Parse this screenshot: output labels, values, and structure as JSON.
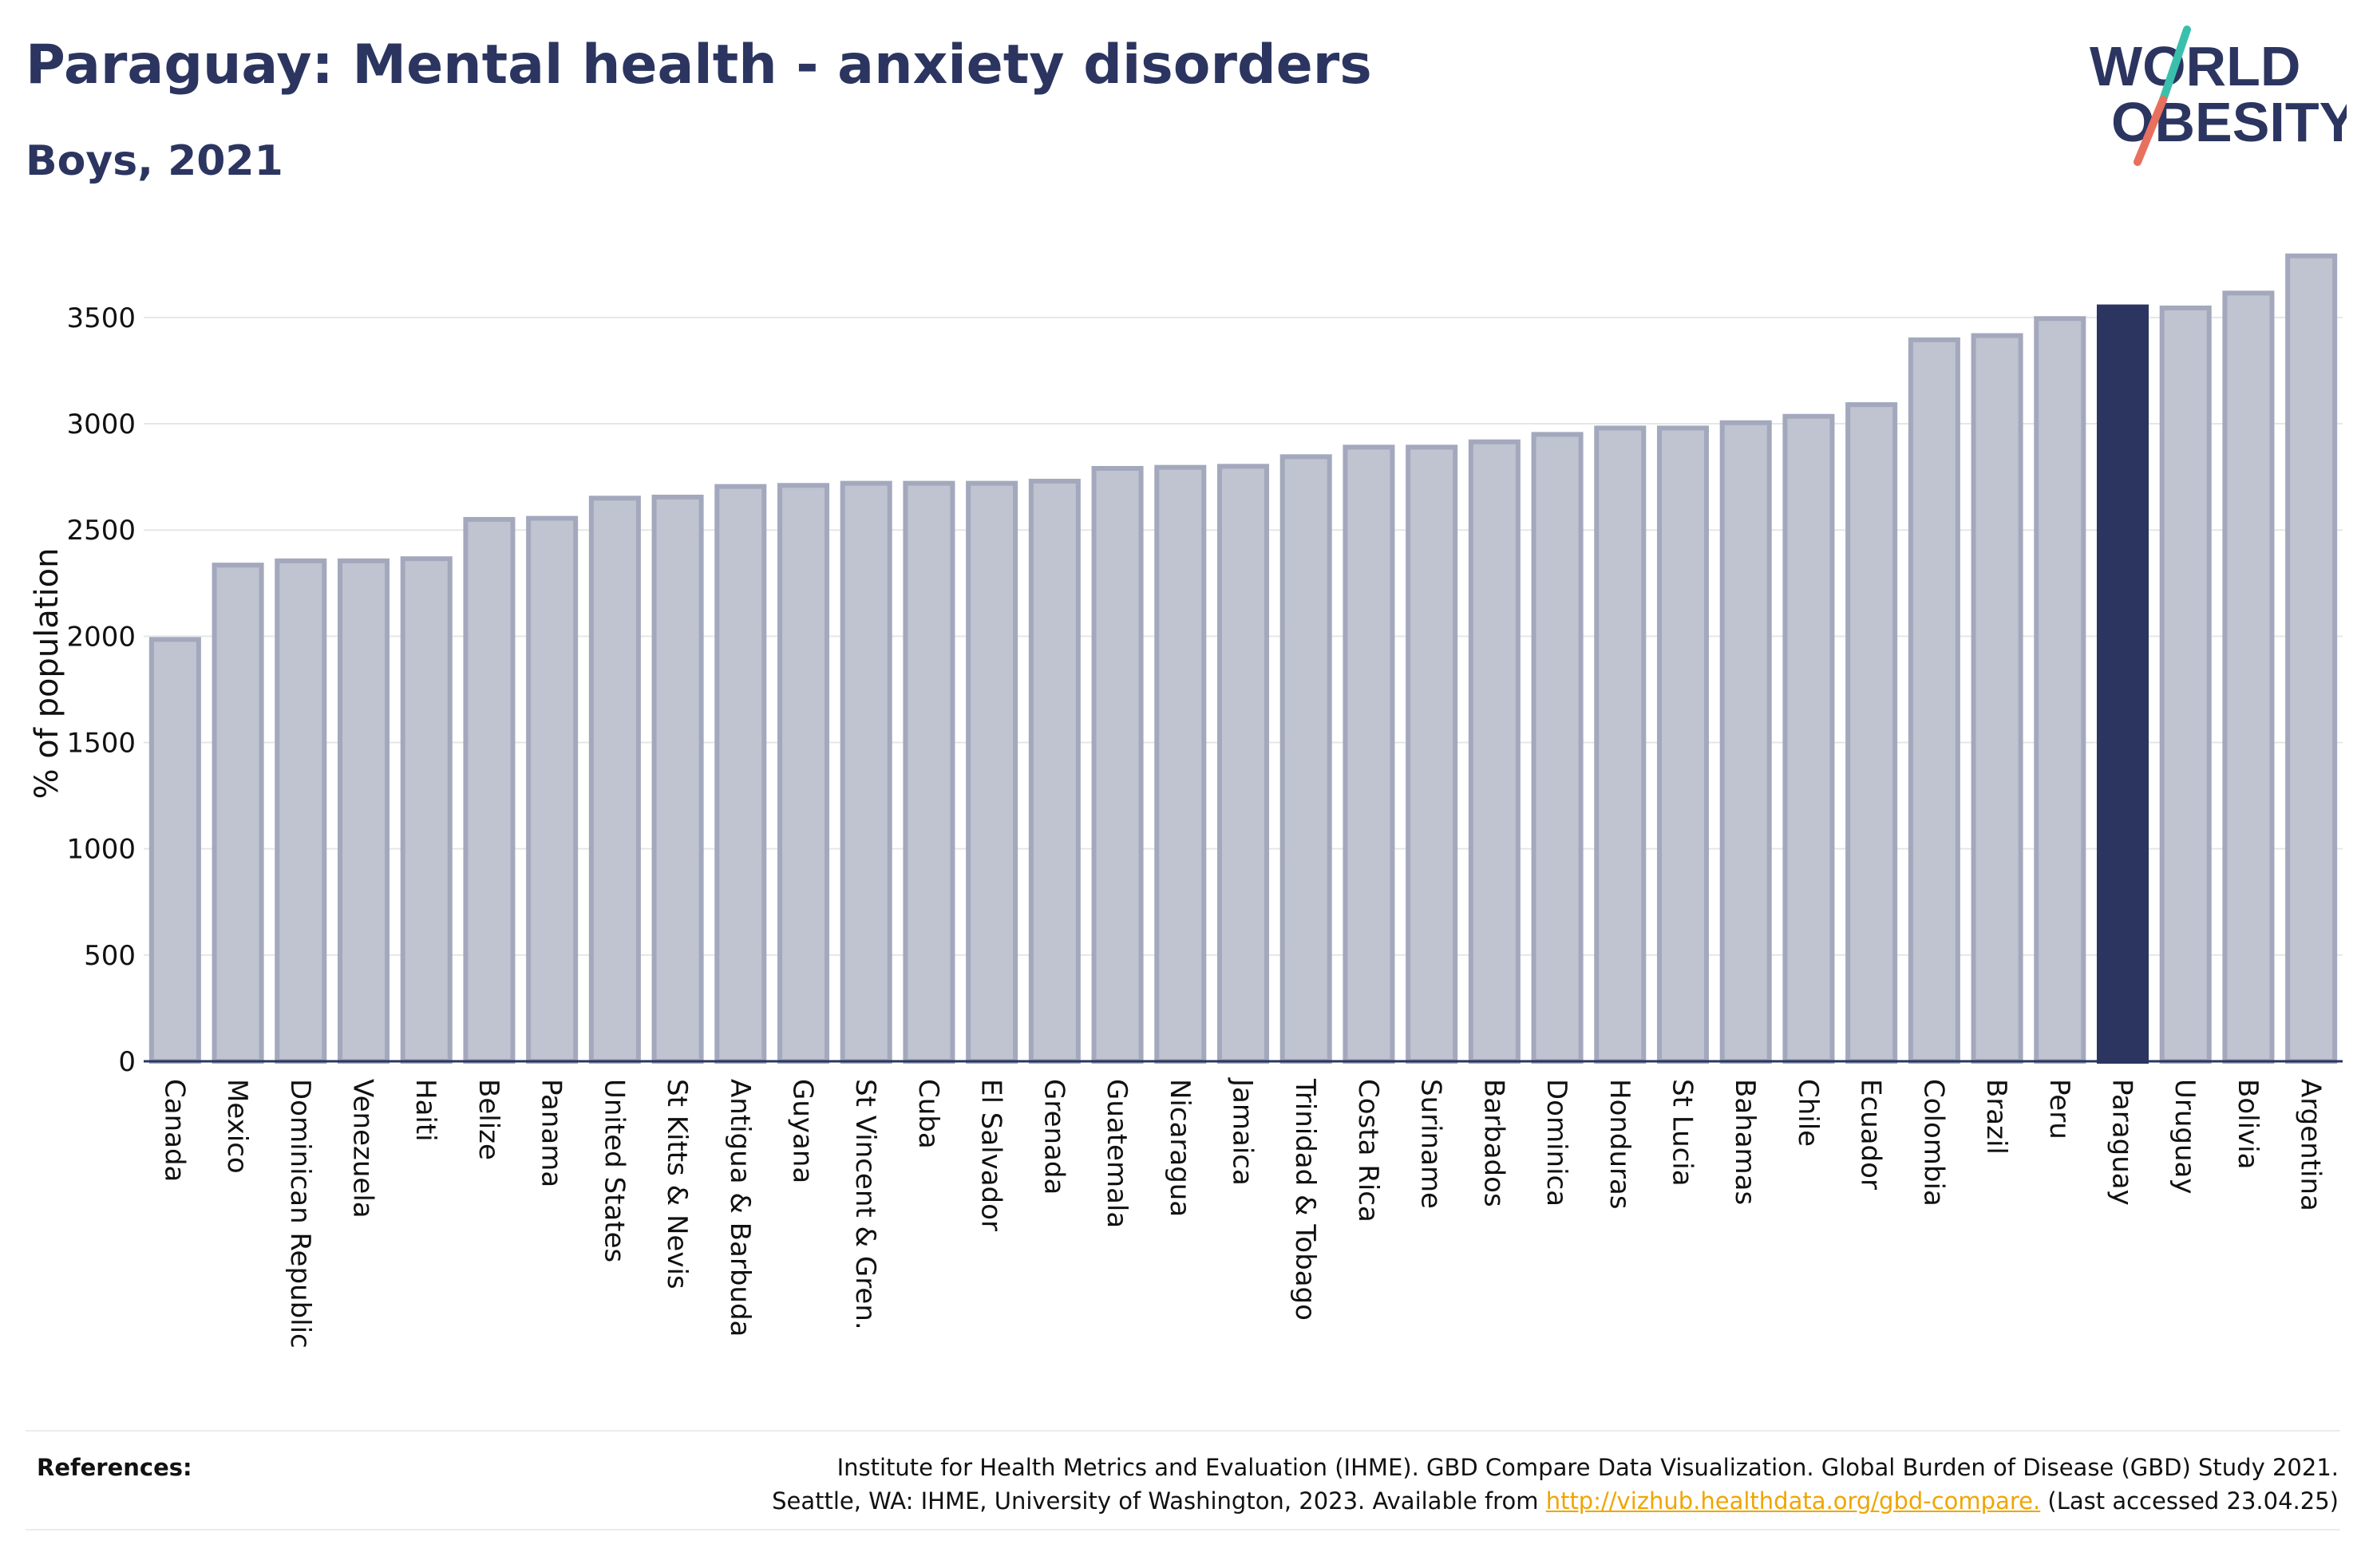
{
  "header": {
    "title": "Paraguay: Mental health - anxiety disorders",
    "subtitle": "Boys, 2021"
  },
  "logo": {
    "line1": "WORLD",
    "line2": "OBESITY"
  },
  "references": {
    "label": "References:",
    "line1": "Institute for Health Metrics and Evaluation (IHME). GBD Compare Data Visualization. Global Burden of Disease (GBD) Study 2021.",
    "line2_prefix": "Seattle, WA: IHME, University of Washington, 2023. Available from ",
    "link": "http://vizhub.healthdata.org/gbd-compare.",
    "line2_suffix": " (Last accessed 23.04.25)"
  },
  "colors": {
    "bar_fill": "#c0c3d0",
    "bar_stroke": "#a3a8bd",
    "highlight": "#2b3560",
    "grid": "#e6e6e6",
    "title": "#2b3560",
    "logo_teal": "#3bbfad",
    "logo_coral": "#e8705f",
    "link": "#f0a500"
  },
  "chart_data": {
    "type": "bar",
    "title": "Paraguay: Mental health - anxiety disorders",
    "subtitle": "Boys, 2021",
    "xlabel": "",
    "ylabel": "% of population",
    "ylim": [
      0,
      3800
    ],
    "yticks": [
      0,
      500,
      1000,
      1500,
      2000,
      2500,
      3000,
      3500
    ],
    "grid": true,
    "highlight": "Paraguay",
    "categories": [
      "Canada",
      "Mexico",
      "Dominican Republic",
      "Venezuela",
      "Haiti",
      "Belize",
      "Panama",
      "United States",
      "St Kitts & Nevis",
      "Antigua & Barbuda",
      "Guyana",
      "St Vincent & Gren.",
      "Cuba",
      "El Salvador",
      "Grenada",
      "Guatemala",
      "Nicaragua",
      "Jamaica",
      "Trinidad & Tobago",
      "Costa Rica",
      "Suriname",
      "Barbados",
      "Dominica",
      "Honduras",
      "St Lucia",
      "Bahamas",
      "Chile",
      "Ecuador",
      "Colombia",
      "Brazil",
      "Peru",
      "Paraguay",
      "Uruguay",
      "Bolivia",
      "Argentina"
    ],
    "values": [
      1985,
      2335,
      2355,
      2355,
      2365,
      2550,
      2555,
      2650,
      2655,
      2705,
      2710,
      2720,
      2720,
      2720,
      2730,
      2790,
      2795,
      2800,
      2845,
      2890,
      2890,
      2915,
      2950,
      2980,
      2980,
      3005,
      3035,
      3090,
      3395,
      3415,
      3495,
      3550,
      3545,
      3615,
      3790
    ]
  }
}
